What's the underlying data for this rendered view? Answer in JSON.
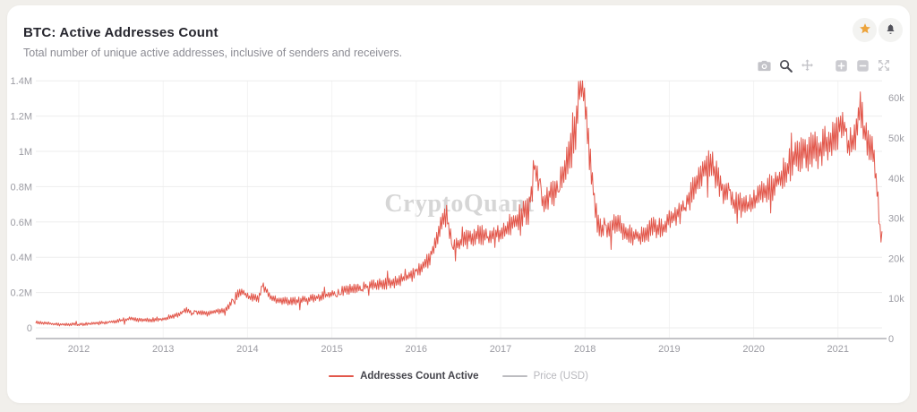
{
  "header": {
    "title": "BTC: Active Addresses Count",
    "subtitle": "Total number of unique active addresses, inclusive of senders and receivers.",
    "actions": [
      {
        "icon": "star-icon",
        "color": "#edA43c"
      },
      {
        "icon": "bell-icon",
        "color": "#52525a"
      }
    ]
  },
  "toolbar": {
    "icons": [
      "camera",
      "zoom-selection",
      "pan",
      "zoom-in",
      "zoom-out",
      "reset-zoom"
    ],
    "active": "zoom-selection"
  },
  "watermark": "CryptoQuant",
  "colors": {
    "series_red": "#e2574b",
    "series_gray": "#bcbcc0",
    "grid": "#ededed",
    "vgrid": "#f3f3f3",
    "axis_line": "#c4c4c8",
    "tick_text": "#9c9ca3",
    "background": "#f1efeb",
    "card": "#ffffff"
  },
  "chart_data": {
    "type": "line",
    "title": "BTC: Active Addresses Count",
    "x_axis": {
      "ticks": [
        "2012",
        "2013",
        "2014",
        "2015",
        "2016",
        "2017",
        "2018",
        "2019",
        "2020",
        "2021"
      ],
      "range": [
        2011.49,
        2021.52
      ],
      "grid": true
    },
    "left_axis": {
      "tick_labels": [
        "0",
        "0.2M",
        "0.4M",
        "0.6M",
        "0.8M",
        "1M",
        "1.2M",
        "1.4M"
      ],
      "tick_values": [
        0,
        0.2,
        0.4,
        0.6,
        0.8,
        1.0,
        1.2,
        1.4
      ],
      "range": [
        0,
        1.4
      ],
      "unit": "M addresses"
    },
    "right_axis": {
      "tick_labels": [
        "0",
        "10k",
        "20k",
        "30k",
        "40k",
        "50k",
        "60k"
      ],
      "tick_values": [
        0,
        10000,
        20000,
        30000,
        40000,
        50000,
        60000
      ],
      "range": [
        0,
        65000
      ],
      "series": "Price (USD)"
    },
    "series": [
      {
        "name": "Addresses Count Active",
        "color": "#e2574b",
        "axis": "left",
        "visible": true,
        "unit": "millions",
        "keypoints": [
          [
            2011.5,
            0.028
          ],
          [
            2011.75,
            0.02
          ],
          [
            2012.0,
            0.02
          ],
          [
            2012.3,
            0.028
          ],
          [
            2012.55,
            0.042
          ],
          [
            2012.62,
            0.05
          ],
          [
            2012.75,
            0.038
          ],
          [
            2013.0,
            0.048
          ],
          [
            2013.15,
            0.07
          ],
          [
            2013.27,
            0.105
          ],
          [
            2013.35,
            0.085
          ],
          [
            2013.55,
            0.09
          ],
          [
            2013.75,
            0.1
          ],
          [
            2013.92,
            0.21
          ],
          [
            2014.0,
            0.17
          ],
          [
            2014.12,
            0.16
          ],
          [
            2014.19,
            0.235
          ],
          [
            2014.3,
            0.165
          ],
          [
            2014.5,
            0.16
          ],
          [
            2014.75,
            0.18
          ],
          [
            2015.0,
            0.2
          ],
          [
            2015.25,
            0.22
          ],
          [
            2015.5,
            0.24
          ],
          [
            2015.75,
            0.27
          ],
          [
            2016.0,
            0.33
          ],
          [
            2016.15,
            0.4
          ],
          [
            2016.28,
            0.55
          ],
          [
            2016.33,
            0.62
          ],
          [
            2016.45,
            0.44
          ],
          [
            2016.6,
            0.47
          ],
          [
            2016.8,
            0.5
          ],
          [
            2017.0,
            0.52
          ],
          [
            2017.15,
            0.6
          ],
          [
            2017.32,
            0.68
          ],
          [
            2017.42,
            0.88
          ],
          [
            2017.5,
            0.7
          ],
          [
            2017.62,
            0.73
          ],
          [
            2017.75,
            0.82
          ],
          [
            2017.85,
            0.95
          ],
          [
            2017.93,
            1.22
          ],
          [
            2017.97,
            1.28
          ],
          [
            2018.02,
            1.1
          ],
          [
            2018.08,
            0.8
          ],
          [
            2018.15,
            0.55
          ],
          [
            2018.25,
            0.52
          ],
          [
            2018.35,
            0.6
          ],
          [
            2018.5,
            0.56
          ],
          [
            2018.65,
            0.54
          ],
          [
            2018.8,
            0.58
          ],
          [
            2018.95,
            0.57
          ],
          [
            2019.1,
            0.64
          ],
          [
            2019.25,
            0.72
          ],
          [
            2019.4,
            0.9
          ],
          [
            2019.5,
            0.95
          ],
          [
            2019.6,
            0.85
          ],
          [
            2019.75,
            0.77
          ],
          [
            2019.9,
            0.75
          ],
          [
            2020.05,
            0.8
          ],
          [
            2020.2,
            0.83
          ],
          [
            2020.35,
            0.88
          ],
          [
            2020.5,
            0.95
          ],
          [
            2020.65,
            0.98
          ],
          [
            2020.8,
            1.02
          ],
          [
            2020.95,
            1.12
          ],
          [
            2021.05,
            1.22
          ],
          [
            2021.12,
            1.08
          ],
          [
            2021.2,
            1.15
          ],
          [
            2021.26,
            1.33
          ],
          [
            2021.3,
            1.18
          ],
          [
            2021.36,
            1.1
          ],
          [
            2021.42,
            1.0
          ],
          [
            2021.46,
            0.8
          ],
          [
            2021.5,
            0.52
          ]
        ]
      },
      {
        "name": "Price (USD)",
        "color": "#bcbcc0",
        "axis": "right",
        "visible": false
      }
    ],
    "legend": {
      "position": "bottom",
      "items": [
        {
          "label": "Addresses Count Active",
          "color": "#e2574b",
          "active": true
        },
        {
          "label": "Price (USD)",
          "color": "#bcbcc0",
          "active": false
        }
      ]
    }
  }
}
